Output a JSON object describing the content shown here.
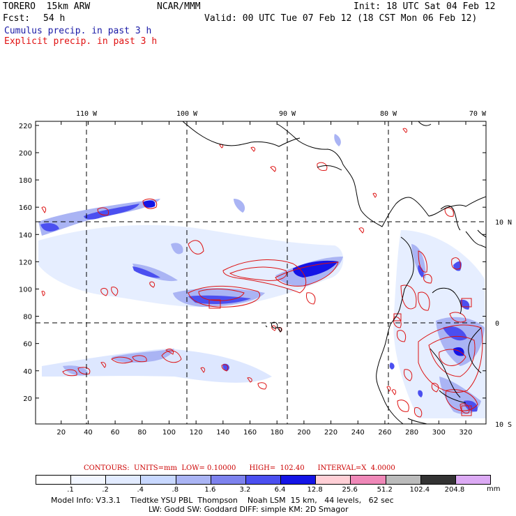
{
  "header": {
    "model": "TORERO  15km ARW",
    "org": "NCAR/MMM",
    "init": "Init: 18 UTC Sat 04 Feb 12",
    "fcst_label": "Fcst:",
    "fcst_hours": "54 h",
    "valid": "Valid: 00 UTC Tue 07 Feb 12 (18 CST Mon 06 Feb 12)",
    "field1": "Cumulus precip. in past 3 h",
    "field2": "Explicit precip. in past 3 h"
  },
  "map": {
    "top_lon_labels": [
      "110 W",
      "100 W",
      "90 W",
      "80 W",
      "70 W"
    ],
    "right_lat_labels": [
      "10 N",
      "0",
      "10 S"
    ],
    "x_ticks": [
      "20",
      "40",
      "60",
      "80",
      "100",
      "120",
      "140",
      "160",
      "180",
      "200",
      "220",
      "240",
      "260",
      "280",
      "300",
      "320"
    ],
    "y_ticks": [
      "20",
      "40",
      "60",
      "80",
      "100",
      "120",
      "140",
      "160",
      "180",
      "200",
      "220"
    ],
    "x_range": [
      1,
      335
    ],
    "y_range": [
      1,
      223
    ],
    "colors": {
      "coast": "#000000",
      "contour": "#dd1111",
      "grid": "#000000"
    }
  },
  "contour_info": {
    "text": "CONTOURS:  UNITS=mm  LOW= 0.10000      HIGH=  102.40      INTERVAL=X  4.0000"
  },
  "colorbar": {
    "labels": [
      ".1",
      ".2",
      ".4",
      ".8",
      "1.6",
      "3.2",
      "6.4",
      "12.8",
      "25.6",
      "51.2",
      "102.4",
      "204.8"
    ],
    "colors": [
      "#ffffff",
      "#f2f6ff",
      "#e2ebff",
      "#c8d8ff",
      "#aab4f4",
      "#7d82ee",
      "#4b4ff0",
      "#1414e6",
      "#ffcfd6",
      "#ef88b8",
      "#bbbbbb",
      "#333333",
      "#dcaaf4"
    ],
    "unit": "mm"
  },
  "footer": {
    "line1": "Model Info: V3.3.1    Tiedtke YSU PBL  Thompson    Noah LSM  15 km,   44 levels,   62 sec",
    "line2": "LW: Godd SW: Goddard DIFF: simple KM: 2D Smagor"
  }
}
